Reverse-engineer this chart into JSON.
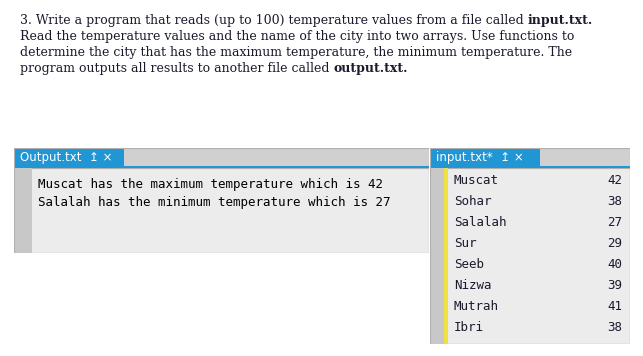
{
  "bg_color": "#ffffff",
  "tab_header_color": "#2196d4",
  "tab_text_color": "#ffffff",
  "output_lines": [
    "Muscat has the maximum temperature which is 42",
    "Salalah has the minimum temperature which is 27"
  ],
  "input_cities": [
    "Muscat",
    "Sohar",
    "Salalah",
    "Sur",
    "Seeb",
    "Nizwa",
    "Mutrah",
    "Ibri"
  ],
  "input_temps": [
    "42",
    "38",
    "27",
    "29",
    "40",
    "39",
    "41",
    "38"
  ],
  "desc_text_color": "#1a1a2e",
  "output_text_color": "#000000",
  "input_text_color": "#1a1a2e",
  "yellow_bar_color": "#f0e040",
  "gray_margin_color": "#c8c8c8",
  "panel_bg_color": "#ececec",
  "panel_border_color": "#b0b0b0",
  "tab_gray_color": "#d0d0d0",
  "font_size_desc": 9.0,
  "font_size_mono": 9.0,
  "font_size_tab": 8.5
}
